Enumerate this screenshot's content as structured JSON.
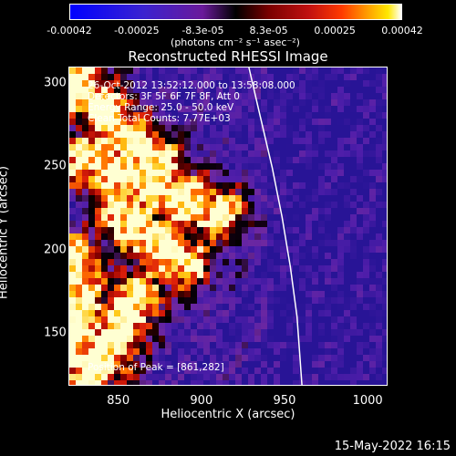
{
  "colorbar": {
    "ticks": [
      "-0.00042",
      "-0.00025",
      "-8.3e-05",
      "8.3e-05",
      "0.00025",
      "0.00042"
    ],
    "tick_values": [
      -0.00042,
      -0.00025,
      -8.3e-05,
      8.3e-05,
      0.00025,
      0.00042
    ],
    "unit": "(photons cm⁻² s⁻¹ asec⁻²)"
  },
  "annotations": {
    "time_range": "26-Oct-2012 13:52:12.000 to 13:58:08.000",
    "detectors": "Detectors: 3F 5F 6F 7F 8F, Att 0",
    "energy": "Energy Range: 25.0 - 50.0 keV",
    "method": "Clean     Total Counts: 7.77E+03",
    "peak": "Position of Peak = [861,282]"
  },
  "footer": {
    "date": "15-May-2022 16:15"
  },
  "colors": {
    "background": "#000000",
    "axis": "#ffffff",
    "limb": "#ffffff"
  },
  "chart_data": {
    "type": "heatmap",
    "title": "Reconstructed RHESSI Image",
    "xlabel": "Heliocentric X (arcsec)",
    "ylabel": "Heliocentric Y (arcsec)",
    "xlim": [
      820,
      1012
    ],
    "ylim": [
      118,
      310
    ],
    "xticks": [
      "850",
      "900",
      "950",
      "1000"
    ],
    "xtick_values": [
      850,
      900,
      950,
      1000
    ],
    "yticks": [
      "150",
      "200",
      "250",
      "300"
    ],
    "ytick_values": [
      150,
      200,
      250,
      300
    ],
    "colormap": "blue-black-red-yellow-white",
    "value_range": [
      -0.00042,
      0.00042
    ],
    "peak_position": [
      861,
      282
    ],
    "limb_curve_x_at_y": [
      [
        928,
        310
      ],
      [
        935,
        280
      ],
      [
        942,
        250
      ],
      [
        948,
        220
      ],
      [
        953,
        190
      ],
      [
        957,
        160
      ],
      [
        960,
        118
      ]
    ],
    "grid": false
  }
}
